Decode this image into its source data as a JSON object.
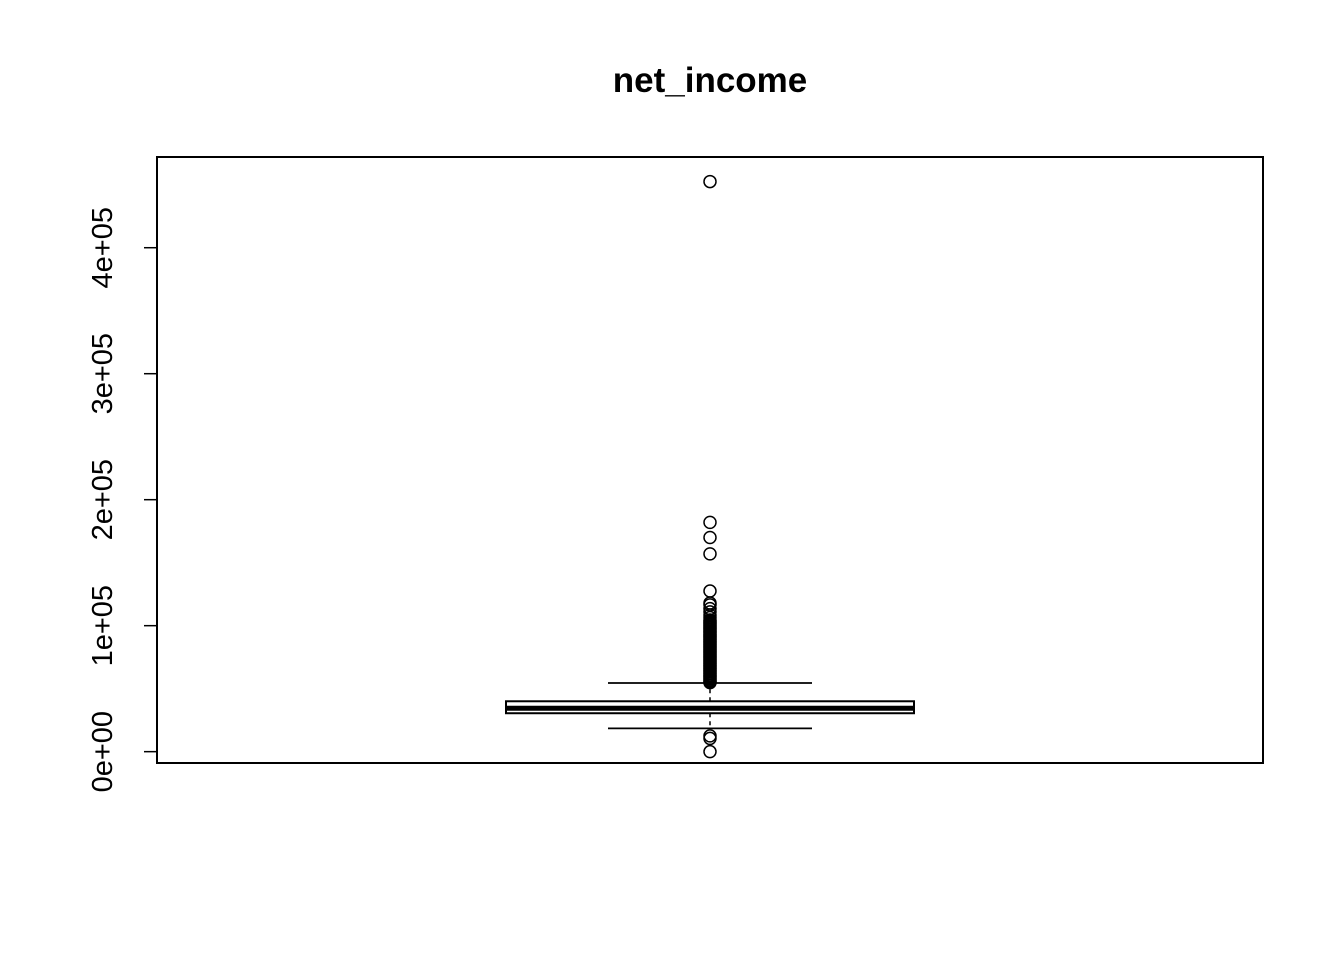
{
  "chart_data": {
    "type": "boxplot",
    "title": "net_income",
    "xlabel": "",
    "ylabel": "",
    "ylim": [
      -9000,
      472000
    ],
    "yticks": [
      {
        "value": 0,
        "label": "0e+00"
      },
      {
        "value": 100000,
        "label": "1e+05"
      },
      {
        "value": 200000,
        "label": "2e+05"
      },
      {
        "value": 300000,
        "label": "3e+05"
      },
      {
        "value": 400000,
        "label": "4e+05"
      }
    ],
    "box": {
      "whisker_low": 18500,
      "q1": 30500,
      "median": 34500,
      "q3": 40000,
      "whisker_high": 54500
    },
    "outliers": [
      0,
      10500,
      12500,
      54800,
      55500,
      56500,
      57500,
      58500,
      59500,
      60500,
      61500,
      62500,
      63500,
      64500,
      65500,
      66500,
      67500,
      68500,
      69500,
      70500,
      71500,
      72500,
      73500,
      74500,
      75500,
      76500,
      77500,
      78500,
      79500,
      80500,
      81500,
      82500,
      83500,
      84500,
      85500,
      86500,
      87500,
      88500,
      89500,
      90500,
      91500,
      92500,
      93500,
      94500,
      95500,
      96500,
      97500,
      98500,
      99500,
      100500,
      101500,
      102500,
      103500,
      104500,
      106500,
      108500,
      111000,
      113500,
      116500,
      118000,
      127500,
      157000,
      170000,
      182000,
      452500
    ],
    "grid": false,
    "legend": "none"
  }
}
